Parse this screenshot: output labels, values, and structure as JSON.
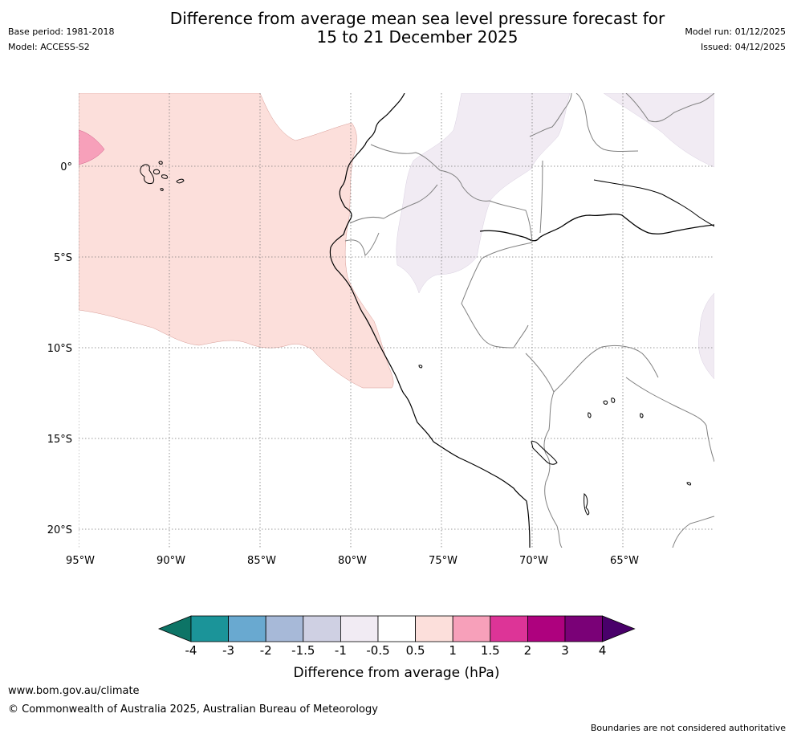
{
  "header": {
    "title_line1": "Difference from average mean sea level pressure forecast for",
    "title_line2": "15 to 21 December 2025",
    "base_period": "Base period: 1981-2018",
    "model": "Model: ACCESS-S2",
    "model_run": "Model run: 01/12/2025",
    "issued": "Issued: 04/12/2025"
  },
  "map": {
    "region": "Eastern tropical Pacific and north-western South America",
    "longitude_labels": [
      "95°W",
      "90°W",
      "85°W",
      "80°W",
      "75°W",
      "70°W",
      "65°W"
    ],
    "latitude_labels": [
      "0°",
      "5°S",
      "10°S",
      "15°S",
      "20°S"
    ],
    "longitude_range_deg": [
      -95,
      -60
    ],
    "latitude_range_deg": [
      -21,
      4
    ],
    "anomaly_areas": [
      {
        "category": "0.5 to 1",
        "location": "Pacific Ocean off Ecuador and Peru"
      },
      {
        "category": "1 to 1.5",
        "location": "western edge near 1°N"
      },
      {
        "category": "-1 to -0.5",
        "location": "western Amazon and northern Brazil"
      },
      {
        "category": "-1 to -0.5",
        "location": "north-east corner and eastern edge"
      }
    ]
  },
  "legend": {
    "title": "Difference from average (hPa)",
    "tick_labels": [
      "-4",
      "-3",
      "-2",
      "-1.5",
      "-1",
      "-0.5",
      "0.5",
      "1",
      "1.5",
      "2",
      "3",
      "4"
    ],
    "colors": [
      "#0d7466",
      "#1b9499",
      "#69a9d0",
      "#a7b9d8",
      "#cfd0e3",
      "#f1ebf3",
      "#ffffff",
      "#fcdfdb",
      "#f7a0ba",
      "#dd3497",
      "#ae017e",
      "#7a0177",
      "#49006a"
    ]
  },
  "footer": {
    "url": "www.bom.gov.au/climate",
    "copyright": "© Commonwealth of Australia 2025, Australian Bureau of Meteorology",
    "disclaimer": "Boundaries are not considered authoritative"
  }
}
